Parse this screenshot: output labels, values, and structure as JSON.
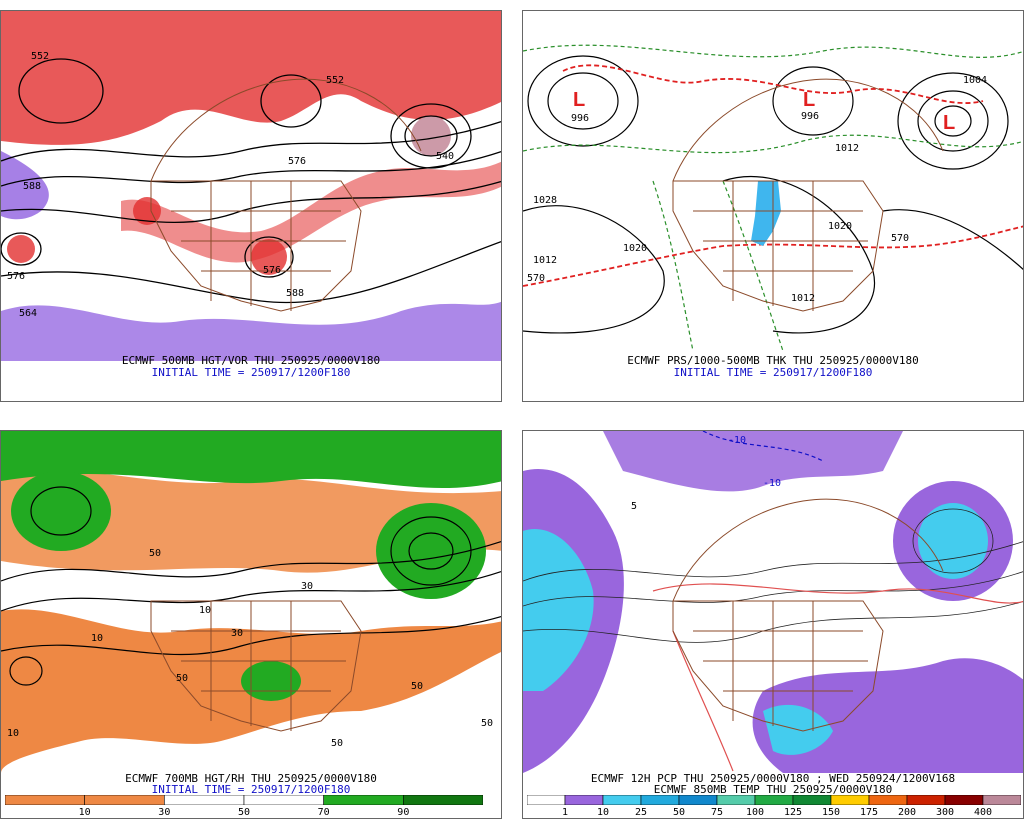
{
  "panels": [
    {
      "id": "tl",
      "caption_line1": "ECMWF 500MB HGT/VOR THU 250925/0000V180",
      "caption_line2": "INITIAL TIME = 250917/1200F180",
      "contour_labels": [
        "552",
        "576",
        "588",
        "564",
        "576",
        "552",
        "540",
        "576",
        "588"
      ]
    },
    {
      "id": "tr",
      "caption_line1": "ECMWF PRS/1000-500MB THK THU 250925/0000V180",
      "caption_line2": "INITIAL TIME = 250917/1200F180",
      "contour_labels": [
        "996",
        "1020",
        "1012",
        "1028",
        "1020",
        "996",
        "1012",
        "570",
        "1012",
        "1004",
        "570"
      ]
    },
    {
      "id": "bl",
      "caption_line1": "ECMWF 700MB HGT/RH THU 250925/0000V180",
      "caption_line2": "INITIAL TIME = 250917/1200F180",
      "contour_labels": [
        "50",
        "10",
        "30",
        "50",
        "10",
        "50",
        "30",
        "50",
        "10",
        "50"
      ]
    },
    {
      "id": "br",
      "caption_line1": "ECMWF 12H PCP THU 250925/0000V180 ; WED 250924/1200V168",
      "caption_line2": "ECMWF 850MB TEMP THU 250925/0000V180",
      "contour_labels": [
        "-10",
        "-10",
        "5"
      ]
    }
  ],
  "rh_scale": {
    "ticks": [
      "10",
      "30",
      "50",
      "70",
      "90"
    ],
    "colors": [
      "#ee8844",
      "#ee8844",
      "#ffffff",
      "#ffffff",
      "#22aa22",
      "#117711"
    ]
  },
  "pcp_scale": {
    "ticks": [
      "1",
      "10",
      "25",
      "50",
      "75",
      "100",
      "125",
      "150",
      "175",
      "200",
      "300",
      "400"
    ],
    "colors": [
      "#ffffff",
      "#9966dd",
      "#44ccee",
      "#22aadd",
      "#1188cc",
      "#55ccaa",
      "#22aa44",
      "#118833",
      "#ffcc00",
      "#ee6611",
      "#cc2200",
      "#880000",
      "#bb8899"
    ]
  },
  "colors": {
    "vorticity": "#e23030",
    "vorticity_neg": "#9060e0",
    "height": "#000000",
    "borders": "#8b4a2a",
    "thickness_cold": "#2a8f2a",
    "thickness_warm": "#e02020",
    "rh_dry": "#ee8844",
    "rh_moist": "#22aa22",
    "pcp_purple": "#9966dd",
    "pcp_cyan": "#44ccee"
  }
}
